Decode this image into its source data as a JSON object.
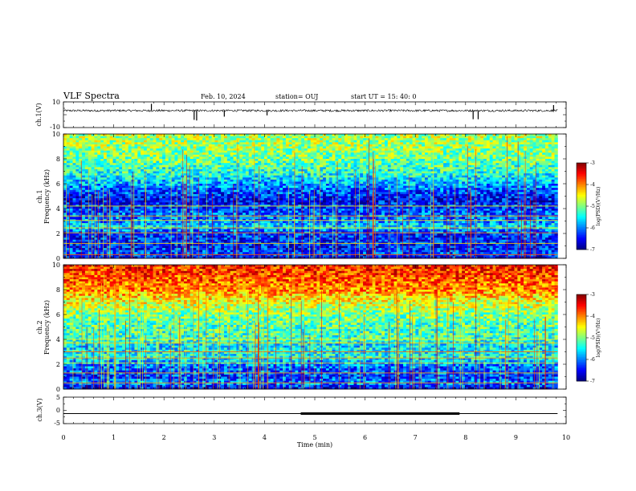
{
  "header": {
    "title": "VLF Spectra",
    "date": "Feb. 10, 2024",
    "station": "station= OUJ",
    "start": "start UT =  15: 40: 0"
  },
  "chart_data": [
    {
      "type": "line",
      "panel": "ch1-waveform",
      "ylabel": "ch.1(V)",
      "ylim": [
        -10,
        10
      ],
      "yticks": [
        "10",
        "-10"
      ],
      "xlim": [
        0,
        9.83
      ],
      "baseline": 3.2,
      "noise_amplitude": 0.8,
      "spikes": [
        [
          1.75,
          8.5
        ],
        [
          2.6,
          -4.0
        ],
        [
          2.65,
          -4.5
        ],
        [
          3.2,
          -1.5
        ],
        [
          4.05,
          -0.5
        ],
        [
          8.15,
          -3.5
        ],
        [
          8.25,
          -3.5
        ],
        [
          9.75,
          7.5
        ]
      ]
    },
    {
      "type": "heatmap",
      "panel": "ch1-spectrogram",
      "ylabel": "ch.1\nFrequency (kHz)",
      "ylim": [
        0,
        10
      ],
      "yticks": [
        "0",
        "2",
        "4",
        "6",
        "8",
        "10"
      ],
      "xlim": [
        0,
        9.83
      ],
      "colorbar": {
        "label": "log(PSD)(V²/Hz)",
        "range": [
          -7,
          -3
        ],
        "ticks": [
          "-3",
          "-4",
          "-5",
          "-6",
          "-7"
        ]
      },
      "background_profile": [
        [
          0,
          -6.6
        ],
        [
          0.4,
          -6.2
        ],
        [
          1.0,
          -6.4
        ],
        [
          2.0,
          -6.3
        ],
        [
          2.6,
          -5.6
        ],
        [
          3.0,
          -6.0
        ],
        [
          3.8,
          -6.2
        ],
        [
          4.6,
          -6.5
        ],
        [
          5.4,
          -6.2
        ],
        [
          6.0,
          -5.8
        ],
        [
          6.8,
          -5.4
        ],
        [
          7.5,
          -5.2
        ],
        [
          8.2,
          -5.0
        ],
        [
          9.0,
          -4.9
        ],
        [
          10,
          -4.8
        ]
      ],
      "tones_khz": [
        0.3,
        1.2,
        2.05,
        2.45,
        3.05,
        3.4,
        4.2
      ],
      "transient_density": 0.08
    },
    {
      "type": "heatmap",
      "panel": "ch2-spectrogram",
      "ylabel": "ch.2\nFrequency (kHz)",
      "ylim": [
        0,
        10
      ],
      "yticks": [
        "0",
        "2",
        "4",
        "6",
        "8",
        "10"
      ],
      "xlim": [
        0,
        9.83
      ],
      "colorbar": {
        "label": "log(PSD)(V²/Hz)",
        "range": [
          -7,
          -3
        ],
        "ticks": [
          "-3",
          "-4",
          "-5",
          "-6",
          "-7"
        ]
      },
      "background_profile": [
        [
          0,
          -6.6
        ],
        [
          0.5,
          -6.0
        ],
        [
          1.0,
          -6.3
        ],
        [
          2.0,
          -6.0
        ],
        [
          2.6,
          -5.4
        ],
        [
          3.5,
          -5.6
        ],
        [
          4.0,
          -5.3
        ],
        [
          5.0,
          -5.2
        ],
        [
          6.0,
          -5.0
        ],
        [
          7.0,
          -4.6
        ],
        [
          8.0,
          -4.0
        ],
        [
          9.0,
          -3.8
        ],
        [
          10,
          -3.6
        ]
      ],
      "tones_khz": [
        0.5,
        1.3,
        2.1,
        2.5,
        3.0,
        3.7,
        4.0,
        8.2
      ],
      "transient_density": 0.1
    },
    {
      "type": "line",
      "panel": "ch3-waveform",
      "ylabel": "ch.3(V)",
      "ylim": [
        -5,
        5
      ],
      "yticks": [
        "5",
        "0",
        "-5"
      ],
      "xlabel": "Time  (min)",
      "xlim": [
        0,
        10
      ],
      "xticks": [
        "0",
        "1",
        "2",
        "3",
        "4",
        "5",
        "6",
        "7",
        "8",
        "9",
        "10"
      ],
      "level": -1.2,
      "thick_segment": [
        4.72,
        7.88
      ]
    }
  ],
  "colors": {
    "colormap": [
      "#000080",
      "#0000ff",
      "#0080ff",
      "#00ffff",
      "#80ff80",
      "#ffff00",
      "#ff8000",
      "#ff0000",
      "#800000"
    ]
  }
}
